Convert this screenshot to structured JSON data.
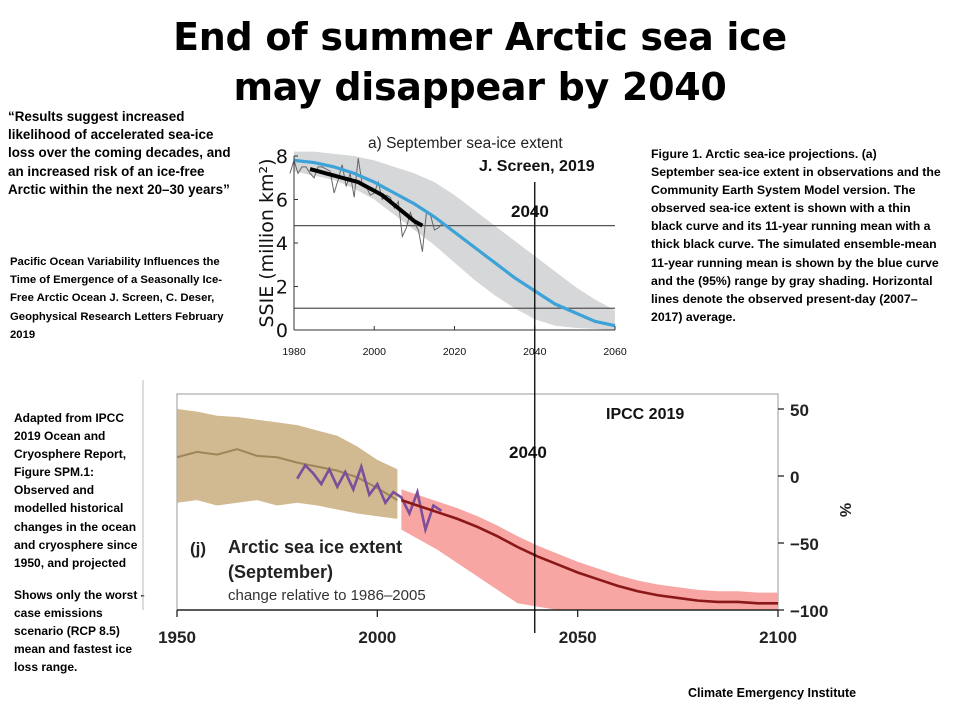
{
  "title_line1": "End of summer Arctic sea ice",
  "title_line2": "may disappear by 2040",
  "quote": "“Results suggest increased likelihood of accelerated sea-ice loss over the coming decades, and an increased risk of an ice-free Arctic  within the next 20–30 years”",
  "citation": "Pacific Ocean Variability Influences the Time of Emergence of a Seasonally Ice-Free Arctic Ocean J. Screen, C. Deser, Geophysical Research Letters February 2019",
  "adapted": "Adapted from IPCC 2019 Ocean and Cryosphere Report, Figure SPM.1: Observed and modelled historical changes in the ocean and cryosphere since 1950,  and projected",
  "shows": "Shows only the worst -case emissions scenario (RCP 8.5) mean and fastest ice loss range.",
  "figure1_caption": "Figure 1.  Arctic sea-ice projections. (a) September sea-ice extent in observations and the Community Earth System Model version. The observed sea-ice extent is shown with a thin black curve and its 11-year running mean with a thick black curve. The simulated ensemble-mean 11-year running mean is shown by the blue curve and the (95%) range by gray shading. Horizontal lines denote the observed present-day (2007–2017)  average.",
  "footer": "Climate Emergency Institute",
  "marker_label": "2040",
  "marker_year": 2040,
  "colors": {
    "blue": "#3ca2d8",
    "gray_band": "#d6d7d8",
    "tan": "#c9ad7e",
    "pink": "#f7a6a3",
    "darkred": "#8b1818",
    "purple": "#7d4e9a",
    "olive": "#9e8659"
  },
  "chart_data": [
    {
      "type": "line",
      "title": "a) September sea-ice extent",
      "source_label": "J. Screen, 2019",
      "ylabel": "SSIE (million km²)",
      "xlim": [
        1980,
        2060
      ],
      "ylim": [
        0,
        8
      ],
      "x_ticks": [
        1980,
        2000,
        2020,
        2040,
        2060
      ],
      "y_ticks": [
        0,
        2,
        4,
        6,
        8
      ],
      "reference_lines": [
        4.8,
        1
      ],
      "series": [
        {
          "name": "observed",
          "x": [
            1979,
            1980,
            1981,
            1982,
            1983,
            1984,
            1985,
            1986,
            1987,
            1988,
            1989,
            1990,
            1991,
            1992,
            1993,
            1994,
            1995,
            1996,
            1997,
            1998,
            1999,
            2000,
            2001,
            2002,
            2003,
            2004,
            2005,
            2006,
            2007,
            2008,
            2009,
            2010,
            2011,
            2012,
            2013,
            2014,
            2015,
            2016,
            2017
          ],
          "y": [
            7.2,
            7.8,
            7.2,
            7.5,
            7.5,
            7.2,
            7.0,
            7.5,
            7.5,
            7.4,
            7.3,
            6.3,
            6.9,
            7.6,
            6.6,
            7.2,
            6.1,
            7.9,
            6.7,
            6.6,
            6.2,
            6.3,
            6.8,
            6.0,
            6.2,
            6.1,
            5.6,
            5.9,
            4.3,
            4.7,
            5.4,
            4.9,
            4.6,
            3.6,
            5.4,
            5.3,
            4.6,
            4.7,
            4.9
          ]
        },
        {
          "name": "observed 11-year running mean",
          "x": [
            1984,
            1986,
            1988,
            1990,
            1992,
            1994,
            1996,
            1998,
            2000,
            2002,
            2004,
            2006,
            2008,
            2010,
            2012
          ],
          "y": [
            7.4,
            7.3,
            7.2,
            7.1,
            7.0,
            6.9,
            6.8,
            6.6,
            6.4,
            6.2,
            5.9,
            5.6,
            5.3,
            5.0,
            4.8
          ]
        },
        {
          "name": "ensemble-mean 11-year running mean",
          "x": [
            1980,
            1985,
            1990,
            1995,
            2000,
            2005,
            2010,
            2015,
            2020,
            2025,
            2030,
            2035,
            2040,
            2045,
            2050,
            2055,
            2060
          ],
          "y": [
            7.8,
            7.7,
            7.5,
            7.2,
            6.8,
            6.3,
            5.8,
            5.2,
            4.5,
            3.8,
            3.1,
            2.4,
            1.8,
            1.2,
            0.8,
            0.4,
            0.2
          ]
        },
        {
          "name": "95% range upper",
          "x": [
            1980,
            1985,
            1990,
            1995,
            2000,
            2005,
            2010,
            2015,
            2020,
            2025,
            2030,
            2035,
            2040,
            2045,
            2050,
            2055,
            2060
          ],
          "y": [
            8.2,
            8.2,
            8.1,
            8.0,
            7.8,
            7.5,
            7.2,
            6.8,
            6.2,
            5.5,
            4.8,
            4.1,
            3.4,
            2.7,
            2.0,
            1.4,
            0.9
          ]
        },
        {
          "name": "95% range lower",
          "x": [
            1980,
            1985,
            1990,
            1995,
            2000,
            2005,
            2010,
            2015,
            2020,
            2025,
            2030,
            2035,
            2040,
            2045,
            2050,
            2055,
            2060
          ],
          "y": [
            7.3,
            7.1,
            6.9,
            6.5,
            6.0,
            5.3,
            4.6,
            3.9,
            3.1,
            2.3,
            1.6,
            1.0,
            0.5,
            0.2,
            0.1,
            0.05,
            0
          ]
        }
      ]
    },
    {
      "type": "line",
      "title": "Arctic sea ice extent",
      "subtitle": "(September)",
      "note": "change relative to 1986–2005",
      "panel_label": "(j)",
      "source_label": "IPCC 2019",
      "ylabel": "%",
      "xlim": [
        1950,
        2100
      ],
      "ylim": [
        -100,
        50
      ],
      "x_ticks": [
        1950,
        2000,
        2050,
        2100
      ],
      "y_ticks": [
        50,
        0,
        -50,
        -100
      ],
      "series": [
        {
          "name": "historical range upper",
          "x": [
            1950,
            1955,
            1960,
            1965,
            1970,
            1975,
            1980,
            1985,
            1990,
            1995,
            2000,
            2005
          ],
          "y": [
            50,
            48,
            45,
            44,
            42,
            40,
            38,
            34,
            30,
            22,
            12,
            5
          ]
        },
        {
          "name": "historical range lower",
          "x": [
            1950,
            1955,
            1960,
            1965,
            1970,
            1975,
            1980,
            1985,
            1990,
            1995,
            2000,
            2005
          ],
          "y": [
            -20,
            -18,
            -22,
            -20,
            -18,
            -22,
            -20,
            -22,
            -25,
            -28,
            -30,
            -32
          ]
        },
        {
          "name": "historical modelled mean",
          "x": [
            1950,
            1955,
            1960,
            1965,
            1970,
            1975,
            1980,
            1985,
            1990,
            1995,
            2000,
            2005
          ],
          "y": [
            14,
            18,
            16,
            20,
            15,
            14,
            10,
            7,
            4,
            -1,
            -9,
            -18
          ]
        },
        {
          "name": "observed",
          "x": [
            1980,
            1982,
            1984,
            1986,
            1988,
            1990,
            1992,
            1994,
            1996,
            1998,
            2000,
            2002,
            2004,
            2006,
            2008,
            2010,
            2012,
            2014,
            2016
          ],
          "y": [
            -2,
            8,
            2,
            -6,
            5,
            -8,
            3,
            -10,
            7,
            -14,
            -6,
            -20,
            -12,
            -16,
            -28,
            -12,
            -40,
            -22,
            -26
          ]
        },
        {
          "name": "RCP8.5 mean",
          "x": [
            2006,
            2010,
            2015,
            2020,
            2025,
            2030,
            2035,
            2040,
            2045,
            2050,
            2055,
            2060,
            2065,
            2070,
            2075,
            2080,
            2085,
            2090,
            2095,
            2100
          ],
          "y": [
            -18,
            -22,
            -27,
            -32,
            -38,
            -45,
            -53,
            -60,
            -66,
            -72,
            -77,
            -82,
            -86,
            -89,
            -91,
            -93,
            -94,
            -94,
            -95,
            -95
          ]
        },
        {
          "name": "RCP8.5 range lower",
          "x": [
            2006,
            2015,
            2025,
            2035,
            2045,
            2055,
            2065,
            2075,
            2085,
            2095,
            2100
          ],
          "y": [
            -40,
            -55,
            -75,
            -95,
            -100,
            -100,
            -100,
            -100,
            -100,
            -100,
            -100
          ]
        }
      ]
    }
  ]
}
